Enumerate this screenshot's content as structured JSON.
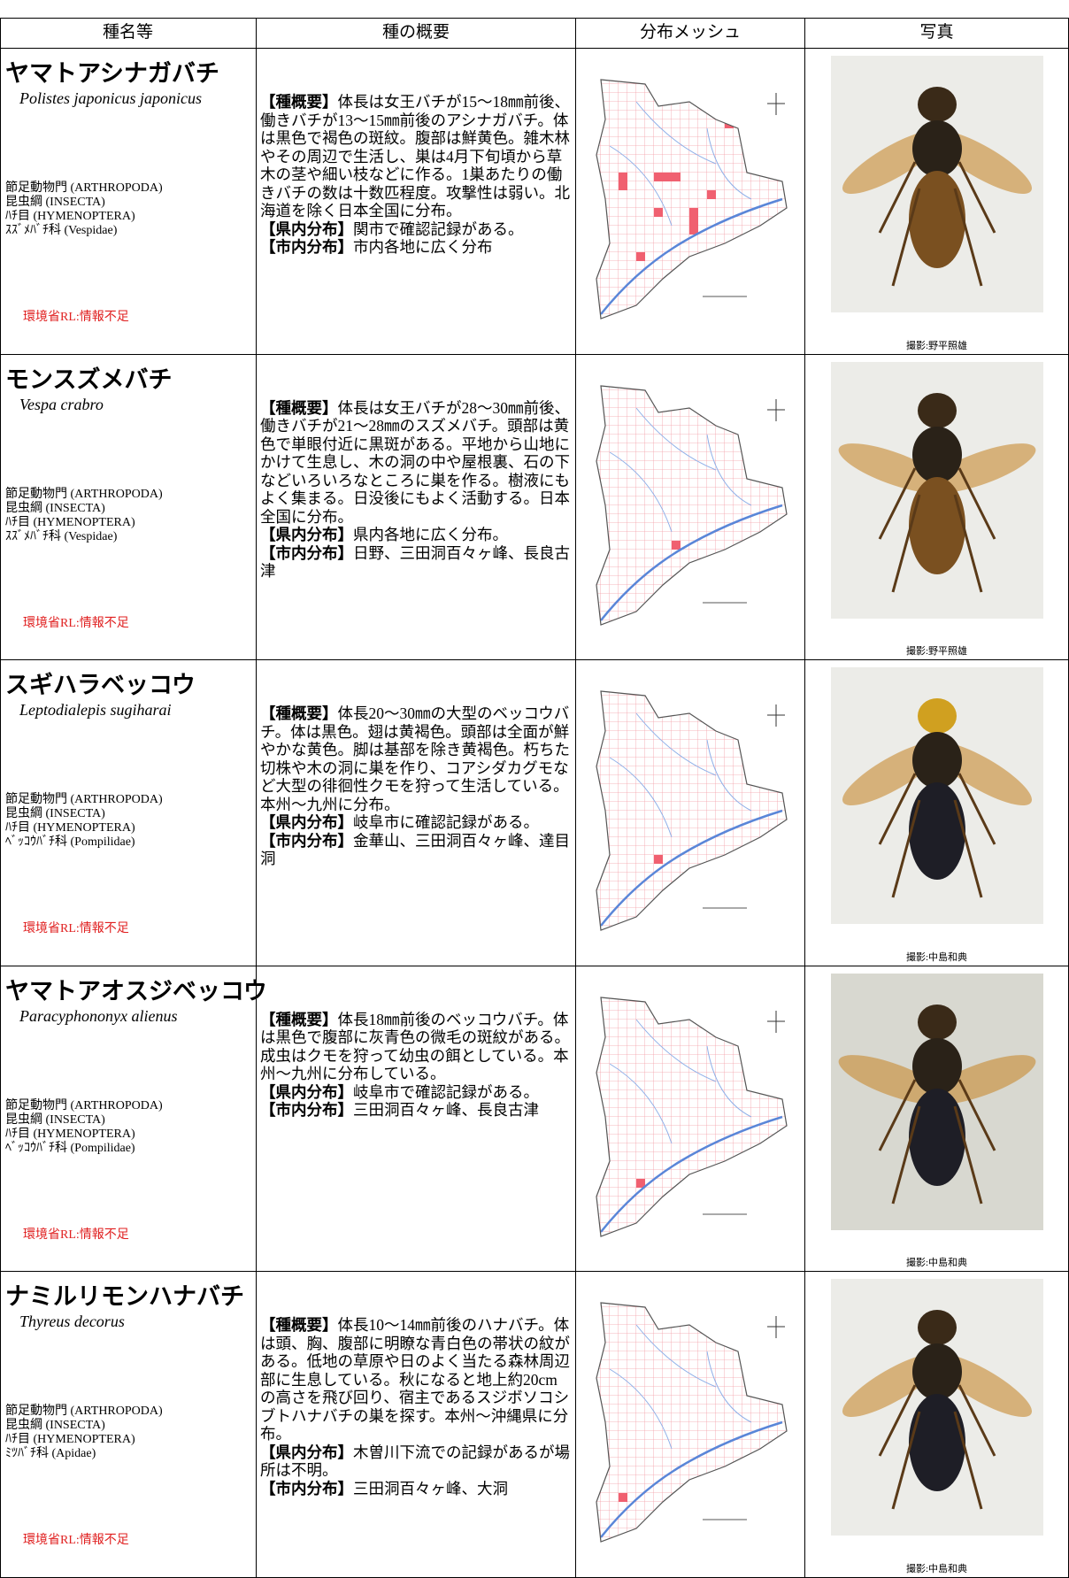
{
  "header": {
    "columns": [
      "種名等",
      "種の概要",
      "分布メッシュ",
      "写真"
    ]
  },
  "labels": {
    "summary": "【種概要】",
    "prefecture": "【県内分布】",
    "city": "【市内分布】"
  },
  "rows": [
    {
      "name": "ヤマトアシナガバチ",
      "scientific_name": "Polistes japonicus japonicus",
      "taxonomy": [
        "節足動物門 (ARTHROPODA)",
        "昆虫綱 (INSECTA)",
        "ﾊﾁ目 (HYMENOPTERA)",
        "ｽｽﾞﾒﾊﾞﾁ科 (Vespidae)"
      ],
      "red_list": "環境省RL:情報不足",
      "summary": "体長は女王バチが15～18㎜前後、働きバチが13～15㎜前後のアシナガバチ。体は黒色で褐色の斑紋。腹部は鮮黄色。雑木林やその周辺で生活し、巣は4月下旬頃から草木の茎や細い枝などに作る。1巣あたりの働きバチの数は十数匹程度。攻撃性は弱い。北海道を除く日本全国に分布。",
      "prefecture": "関市で確認記録がある。",
      "city": "市内各地に広く分布",
      "photo_credit": "撮影:野平照雄"
    },
    {
      "name": "モンスズメバチ",
      "scientific_name": "Vespa crabro",
      "taxonomy": [
        "節足動物門 (ARTHROPODA)",
        "昆虫綱 (INSECTA)",
        "ﾊﾁ目 (HYMENOPTERA)",
        "ｽｽﾞﾒﾊﾞﾁ科 (Vespidae)"
      ],
      "red_list": "環境省RL:情報不足",
      "summary": "体長は女王バチが28～30㎜前後、働きバチが21～28㎜のスズメバチ。頭部は黄色で単眼付近に黒斑がある。平地から山地にかけて生息し、木の洞の中や屋根裏、石の下などいろいろなところに巣を作る。樹液にもよく集まる。日没後にもよく活動する。日本全国に分布。",
      "prefecture": "県内各地に広く分布。",
      "city": "日野、三田洞百々ヶ峰、長良古津",
      "photo_credit": "撮影:野平照雄"
    },
    {
      "name": "スギハラベッコウ",
      "scientific_name": "Leptodialepis sugiharai",
      "taxonomy": [
        "節足動物門 (ARTHROPODA)",
        "昆虫綱 (INSECTA)",
        "ﾊﾁ目 (HYMENOPTERA)",
        "ﾍﾞｯｺｳﾊﾞﾁ科 (Pompilidae)"
      ],
      "red_list": "環境省RL:情報不足",
      "summary": "体長20～30㎜の大型のベッコウバチ。体は黒色。翅は黄褐色。頭部は全面が鮮やかな黄色。脚は基部を除き黄褐色。朽ちた切株や木の洞に巣を作り、コアシダカグモなど大型の徘徊性クモを狩って生活している。本州～九州に分布。",
      "prefecture": "岐阜市に確認記録がある。",
      "city": "金華山、三田洞百々ヶ峰、達目洞",
      "photo_credit": "撮影:中島和典"
    },
    {
      "name": "ヤマトアオスジベッコウ",
      "scientific_name": "Paracyphononyx alienus",
      "taxonomy": [
        "節足動物門 (ARTHROPODA)",
        "昆虫綱 (INSECTA)",
        "ﾊﾁ目 (HYMENOPTERA)",
        "ﾍﾞｯｺｳﾊﾞﾁ科 (Pompilidae)"
      ],
      "red_list": "環境省RL:情報不足",
      "summary": "体長18㎜前後のベッコウバチ。体は黒色で腹部に灰青色の微毛の斑紋がある。成虫はクモを狩って幼虫の餌としている。本州～九州に分布している。",
      "prefecture": "岐阜市で確認記録がある。",
      "city": "三田洞百々ヶ峰、長良古津",
      "photo_credit": "撮影:中島和典"
    },
    {
      "name": "ナミルリモンハナバチ",
      "scientific_name": "Thyreus decorus",
      "taxonomy": [
        "節足動物門 (ARTHROPODA)",
        "昆虫綱 (INSECTA)",
        "ﾊﾁ目 (HYMENOPTERA)",
        "ﾐﾂﾊﾞﾁ科 (Apidae)"
      ],
      "red_list": "環境省RL:情報不足",
      "summary": "体長10～14㎜前後のハナバチ。体は頭、胸、腹部に明瞭な青白色の帯状の紋がある。低地の草原や日のよく当たる森林周辺部に生息している。秋になると地上約20cmの高さを飛び回り、宿主であるスジボソコシブトハナバチの巣を探す。本州～沖縄県に分布。",
      "prefecture": "木曽川下流での記録があるが場所は不明。",
      "city": "三田洞百々ヶ峰、大洞",
      "photo_credit": "撮影:中島和典"
    }
  ]
}
